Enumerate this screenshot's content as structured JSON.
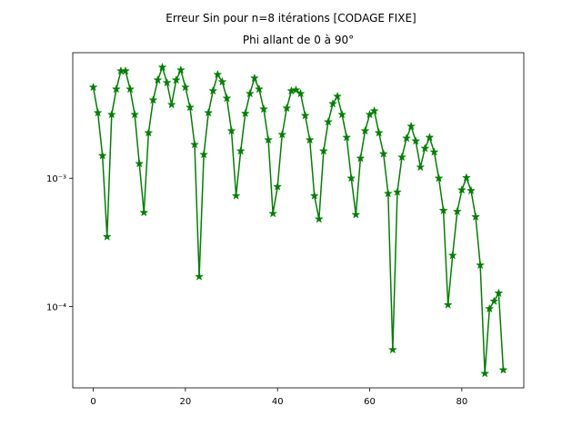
{
  "chart_data": {
    "type": "line",
    "title": "Erreur Sin pour n=8 itérations [CODAGE FIXE]",
    "subtitle": "Phi allant de 0 à 90°",
    "x": [
      0,
      1,
      2,
      3,
      4,
      5,
      6,
      7,
      8,
      9,
      10,
      11,
      12,
      13,
      14,
      15,
      16,
      17,
      18,
      19,
      20,
      21,
      22,
      23,
      24,
      25,
      26,
      27,
      28,
      29,
      30,
      31,
      32,
      33,
      34,
      35,
      36,
      37,
      38,
      39,
      40,
      41,
      42,
      43,
      44,
      45,
      46,
      47,
      48,
      49,
      50,
      51,
      52,
      53,
      54,
      55,
      56,
      57,
      58,
      59,
      60,
      61,
      62,
      63,
      64,
      65,
      66,
      67,
      68,
      69,
      70,
      71,
      72,
      73,
      74,
      75,
      76,
      77,
      78,
      79,
      80,
      81,
      82,
      83,
      84,
      85,
      86,
      87,
      88,
      89
    ],
    "series": [
      {
        "color": "#008000",
        "marker": "star",
        "values": [
          0.00512,
          0.00324,
          0.0015,
          0.00035,
          0.00314,
          0.00495,
          0.00687,
          0.00687,
          0.00495,
          0.00314,
          0.0013,
          0.00054,
          0.00226,
          0.00407,
          0.00583,
          0.00733,
          0.00556,
          0.00375,
          0.00583,
          0.00698,
          0.00512,
          0.00357,
          0.00183,
          0.000171,
          0.00153,
          0.00324,
          0.0048,
          0.00644,
          0.00565,
          0.0042,
          0.00234,
          0.00073,
          0.00163,
          0.0032,
          0.00457,
          0.00603,
          0.00495,
          0.00346,
          0.00199,
          0.00053,
          0.00086,
          0.00219,
          0.00352,
          0.0048,
          0.00488,
          0.00457,
          0.00308,
          0.00199,
          0.00073,
          0.00048,
          0.00163,
          0.00275,
          0.00381,
          0.00435,
          0.00314,
          0.00208,
          0.001,
          0.00052,
          0.00143,
          0.00234,
          0.00314,
          0.00335,
          0.00226,
          0.00155,
          0.00076,
          4.6e-05,
          0.00078,
          0.00146,
          0.00205,
          0.00254,
          0.00195,
          0.00122,
          0.00171,
          0.00208,
          0.0016,
          0.001,
          0.00056,
          0.000103,
          0.00025,
          0.00055,
          0.00081,
          0.00101,
          0.0008,
          0.0005,
          0.00021,
          3e-05,
          9.6e-05,
          0.00011,
          0.000127,
          3.2e-05
        ]
      }
    ],
    "xlim": [
      -4.45,
      93.45
    ],
    "ylim": [
      2.32e-05,
      0.00953
    ],
    "y_scale": "log",
    "xticks": [
      0,
      20,
      40,
      60,
      80
    ],
    "yticks": [
      {
        "value": 0.0001,
        "label": "10⁻⁴"
      },
      {
        "value": 0.001,
        "label": "10⁻³"
      }
    ]
  }
}
